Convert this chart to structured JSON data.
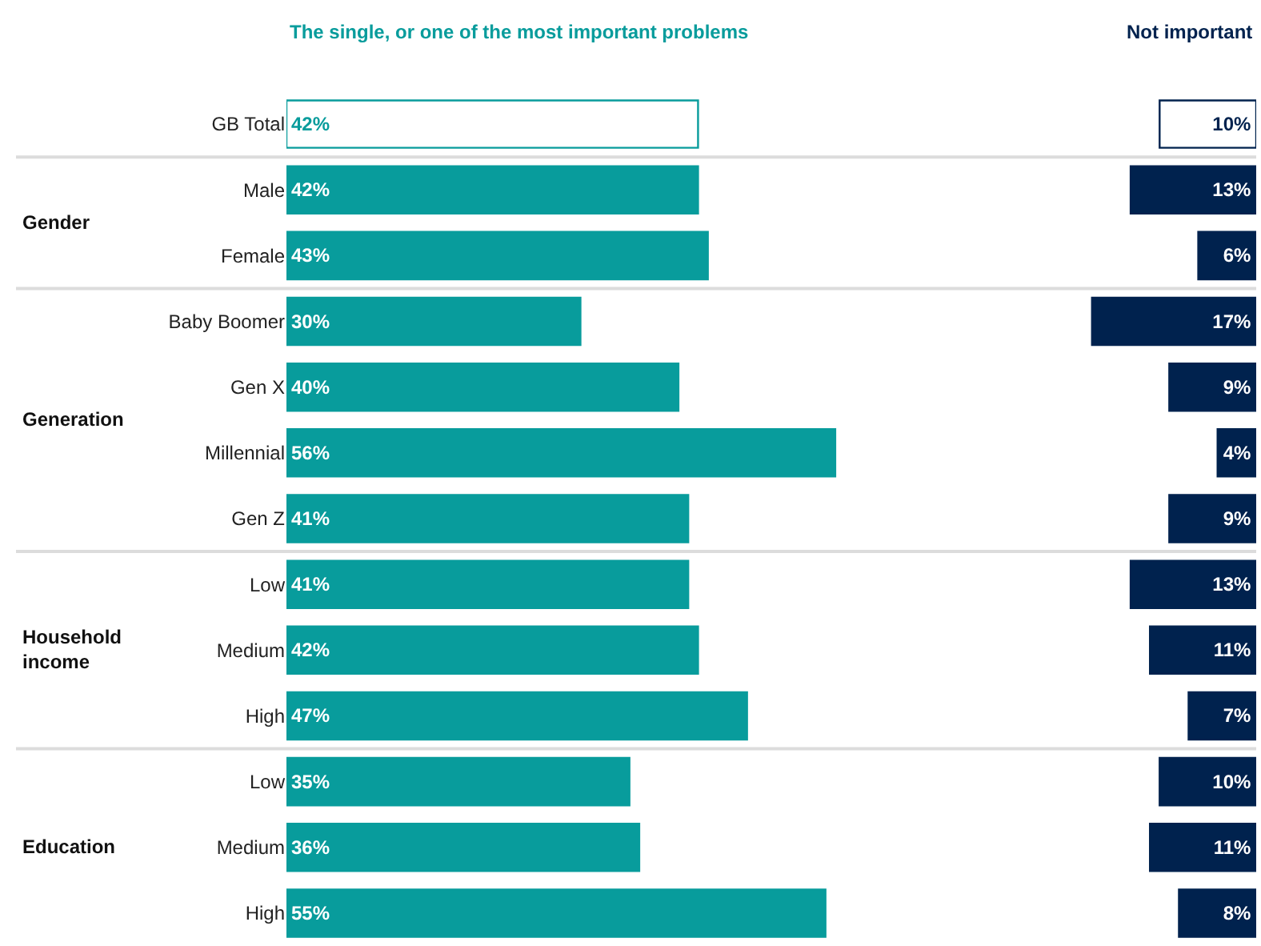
{
  "chart_data": [
    {
      "type": "bar",
      "orientation": "horizontal",
      "title": "The single, or one of the most important problems",
      "categories": [
        "GB Total",
        "Male",
        "Female",
        "Baby Boomer",
        "Gen X",
        "Millennial",
        "Gen Z",
        "Low",
        "Medium",
        "High",
        "Low",
        "Medium",
        "High"
      ],
      "series": [
        {
          "color": "#089c9c",
          "colors": [
            "#ffffff",
            "#089c9c",
            "#089c9c",
            "#089c9c",
            "#089c9c",
            "#089c9c",
            "#089c9c",
            "#089c9c",
            "#089c9c",
            "#089c9c",
            "#089c9c",
            "#089c9c",
            "#089c9c"
          ],
          "values": [
            42,
            42,
            43,
            30,
            40,
            56,
            41,
            41,
            42,
            47,
            35,
            36,
            55
          ],
          "value_labels": [
            "42%",
            "42%",
            "43%",
            "30%",
            "40%",
            "56%",
            "41%",
            "41%",
            "42%",
            "47%",
            "35%",
            "36%",
            "55%"
          ]
        }
      ],
      "tick_labels": "y",
      "grid": false,
      "legend": false,
      "annotations": [
        "Gender",
        "Generation",
        "Household\nincome",
        "Education"
      ]
    },
    {
      "type": "bar",
      "orientation": "horizontal",
      "title": "Not important",
      "categories": [
        null,
        null,
        null,
        null,
        null,
        null,
        null,
        null,
        null,
        null,
        null,
        null,
        null
      ],
      "series": [
        {
          "color": "#00224e",
          "colors": [
            "#ffffff",
            "#00224e",
            "#00224e",
            "#00224e",
            "#00224e",
            "#00224e",
            "#00224e",
            "#00224e",
            "#00224e",
            "#00224e",
            "#00224e",
            "#00224e",
            "#00224e"
          ],
          "values": [
            10,
            13,
            6,
            17,
            9,
            4,
            9,
            13,
            11,
            7,
            10,
            11,
            8
          ],
          "value_labels": [
            "10%",
            "13%",
            "6%",
            "17%",
            "9%",
            "4%",
            "9%",
            "13%",
            "11%",
            "7%",
            "10%",
            "11%",
            "8%"
          ]
        }
      ],
      "grid": false,
      "legend": false
    }
  ]
}
